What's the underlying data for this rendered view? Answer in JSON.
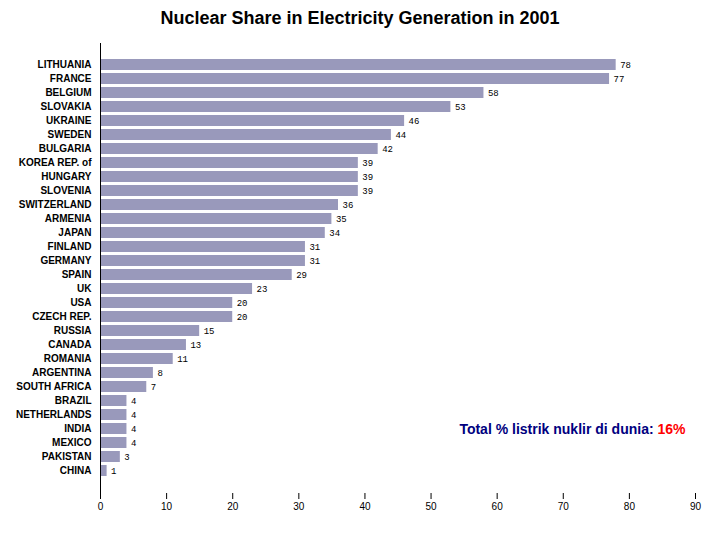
{
  "chart_data": {
    "type": "bar",
    "orientation": "horizontal",
    "title": "Nuclear Share in Electricity Generation in 2001",
    "categories": [
      "CHINA",
      "PAKISTAN",
      "MEXICO",
      "INDIA",
      "NETHERLANDS",
      "BRAZIL",
      "SOUTH AFRICA",
      "ARGENTINA",
      "ROMANIA",
      "CANADA",
      "RUSSIA",
      "CZECH REP.",
      "USA",
      "UK",
      "SPAIN",
      "GERMANY",
      "FINLAND",
      "JAPAN",
      "ARMENIA",
      "SWITZERLAND",
      "SLOVENIA",
      "HUNGARY",
      "KOREA REP. of",
      "BULGARIA",
      "SWEDEN",
      "UKRAINE",
      "SLOVAKIA",
      "BELGIUM",
      "FRANCE",
      "LITHUANIA"
    ],
    "values": [
      1,
      3,
      4,
      4,
      4,
      4,
      7,
      8,
      11,
      13,
      15,
      20,
      20,
      23,
      29,
      31,
      31,
      34,
      35,
      36,
      39,
      39,
      39,
      42,
      44,
      46,
      53,
      58,
      77,
      78
    ],
    "color": "#9999BB",
    "xlim": [
      0,
      90
    ],
    "xticks": [
      0,
      10,
      20,
      30,
      40,
      50,
      60,
      70,
      80,
      90
    ],
    "grid": false,
    "data_labels": true,
    "annotations": [
      {
        "text": "Total % listrik nuklir di dunia: ",
        "color": "#000080"
      },
      {
        "text": "16%",
        "color": "#FF0000"
      }
    ]
  }
}
